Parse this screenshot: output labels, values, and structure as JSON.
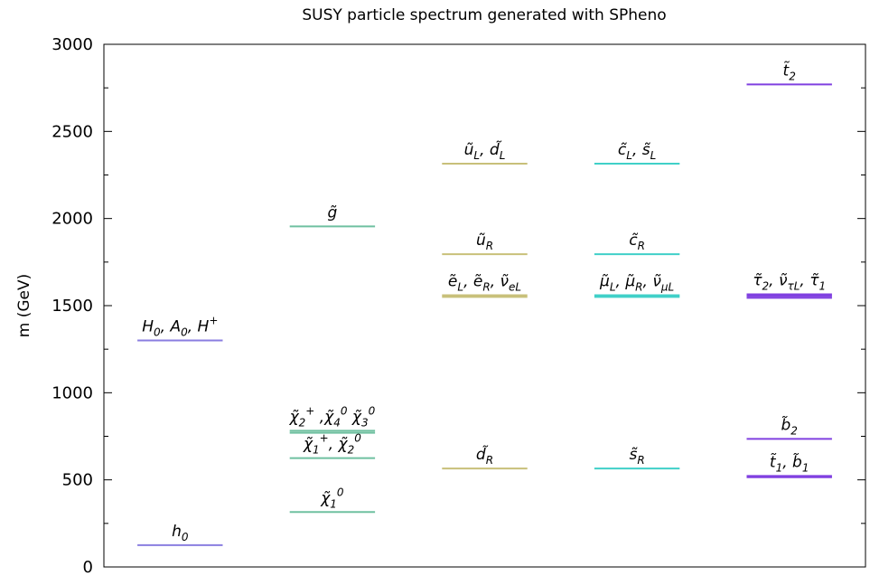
{
  "chart_data": {
    "type": "spectrum",
    "title": "SUSY particle spectrum generated with SPheno",
    "ylabel": "m (GeV)",
    "ylim": [
      0,
      3000
    ],
    "yticks": [
      0,
      500,
      1000,
      1500,
      2000,
      2500,
      3000
    ],
    "yticks_minor": [
      250,
      750,
      1250,
      1750,
      2250,
      2750
    ],
    "xlim": [
      -0.5,
      4.5
    ],
    "levels": [
      {
        "column": 0,
        "masses": [
          125
        ],
        "color": "#8a7ee0",
        "label": [
          {
            "text": "h"
          },
          {
            "text": "0",
            "sub": true
          }
        ]
      },
      {
        "column": 0,
        "masses": [
          1300
        ],
        "color": "#8a7ee0",
        "label": [
          {
            "text": "H"
          },
          {
            "text": "0",
            "sub": true
          },
          {
            "text": ", A"
          },
          {
            "text": "0",
            "sub": true
          },
          {
            "text": ", H"
          },
          {
            "text": "+",
            "sup": true
          }
        ]
      },
      {
        "column": 1,
        "masses": [
          315
        ],
        "color": "#6fc0a0",
        "label": [
          {
            "text": "χ̃"
          },
          {
            "text": "1",
            "sub": true
          },
          {
            "text": "0",
            "sup": true
          }
        ]
      },
      {
        "column": 1,
        "masses": [
          625
        ],
        "color": "#6fc0a0",
        "label": [
          {
            "text": "χ̃"
          },
          {
            "text": "1",
            "sub": true
          },
          {
            "text": "+",
            "sup": true
          },
          {
            "text": ", χ̃"
          },
          {
            "text": "2",
            "sub": true
          },
          {
            "text": "0",
            "sup": true
          }
        ]
      },
      {
        "column": 1,
        "masses": [
          770,
          782
        ],
        "color": "#6fc0a0",
        "label": [
          {
            "text": "χ̃"
          },
          {
            "text": "2",
            "sub": true
          },
          {
            "text": "+",
            "sup": true
          },
          {
            "text": " ,χ̃"
          },
          {
            "text": "4",
            "sub": true
          },
          {
            "text": "0",
            "sup": true
          },
          {
            "text": " χ̃"
          },
          {
            "text": "3",
            "sub": true
          },
          {
            "text": "0",
            "sup": true
          }
        ]
      },
      {
        "column": 1,
        "masses": [
          1955
        ],
        "color": "#6fc0a0",
        "label": [
          {
            "text": "g̃"
          }
        ]
      },
      {
        "column": 2,
        "masses": [
          565
        ],
        "color": "#c8c07a",
        "label": [
          {
            "text": "d̃"
          },
          {
            "text": "R",
            "sub": true
          }
        ]
      },
      {
        "column": 2,
        "masses": [
          1550,
          1560
        ],
        "color": "#c8c07a",
        "label": [
          {
            "text": "ẽ"
          },
          {
            "text": "L",
            "sub": true
          },
          {
            "text": ", ẽ"
          },
          {
            "text": "R",
            "sub": true
          },
          {
            "text": ", ν̃"
          },
          {
            "text": "eL",
            "sub": true
          }
        ]
      },
      {
        "column": 2,
        "masses": [
          1795
        ],
        "color": "#c8c07a",
        "label": [
          {
            "text": "ũ"
          },
          {
            "text": "R",
            "sub": true
          }
        ]
      },
      {
        "column": 2,
        "masses": [
          2315
        ],
        "color": "#c8c07a",
        "label": [
          {
            "text": "ũ"
          },
          {
            "text": "L",
            "sub": true
          },
          {
            "text": ", d̃"
          },
          {
            "text": "L",
            "sub": true
          }
        ]
      },
      {
        "column": 3,
        "masses": [
          565
        ],
        "color": "#40d0c8",
        "label": [
          {
            "text": "s̃"
          },
          {
            "text": "R",
            "sub": true
          }
        ]
      },
      {
        "column": 3,
        "masses": [
          1550,
          1560
        ],
        "color": "#40d0c8",
        "label": [
          {
            "text": "μ̃"
          },
          {
            "text": "L",
            "sub": true
          },
          {
            "text": ", μ̃"
          },
          {
            "text": "R",
            "sub": true
          },
          {
            "text": ", ν̃"
          },
          {
            "text": "μL",
            "sub": true
          }
        ]
      },
      {
        "column": 3,
        "masses": [
          1795
        ],
        "color": "#40d0c8",
        "label": [
          {
            "text": "c̃"
          },
          {
            "text": "R",
            "sub": true
          }
        ]
      },
      {
        "column": 3,
        "masses": [
          2315
        ],
        "color": "#40d0c8",
        "label": [
          {
            "text": "c̃"
          },
          {
            "text": "L",
            "sub": true
          },
          {
            "text": ", s̃"
          },
          {
            "text": "L",
            "sub": true
          }
        ]
      },
      {
        "column": 4,
        "masses": [
          515,
          522
        ],
        "color": "#8040e0",
        "label": [
          {
            "text": "t̃"
          },
          {
            "text": "1",
            "sub": true
          },
          {
            "text": ", b̃"
          },
          {
            "text": "1",
            "sub": true
          }
        ]
      },
      {
        "column": 4,
        "masses": [
          735
        ],
        "color": "#8040e0",
        "label": [
          {
            "text": "b̃"
          },
          {
            "text": "2",
            "sub": true
          }
        ]
      },
      {
        "column": 4,
        "masses": [
          1545,
          1555,
          1565
        ],
        "color": "#8040e0",
        "label": [
          {
            "text": "τ̃"
          },
          {
            "text": "2",
            "sub": true
          },
          {
            "text": ", ν̃"
          },
          {
            "text": "τL",
            "sub": true
          },
          {
            "text": ", τ̃"
          },
          {
            "text": "1",
            "sub": true
          }
        ]
      },
      {
        "column": 4,
        "masses": [
          2770
        ],
        "color": "#8040e0",
        "label": [
          {
            "text": "t̃"
          },
          {
            "text": "2",
            "sub": true
          }
        ]
      }
    ]
  }
}
